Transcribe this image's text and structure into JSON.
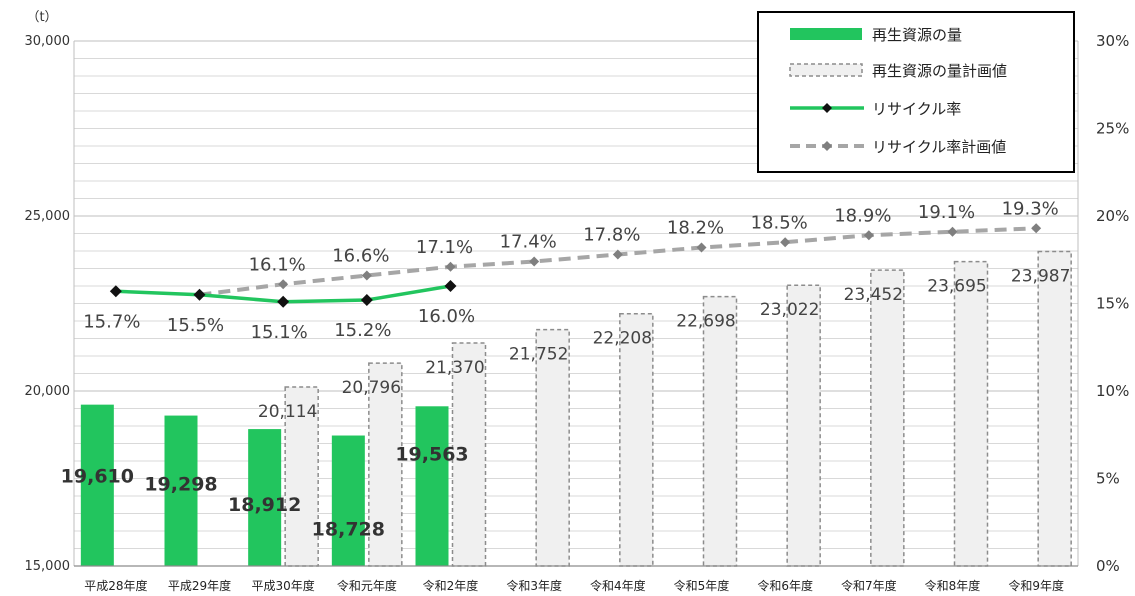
{
  "chart_data": {
    "type": "bar",
    "unit_label": "（t）",
    "categories": [
      "平成28年度",
      "平成29年度",
      "平成30年度",
      "令和元年度",
      "令和2年度",
      "令和3年度",
      "令和4年度",
      "令和5年度",
      "令和6年度",
      "令和7年度",
      "令和8年度",
      "令和9年度"
    ],
    "ylim": [
      15000,
      30000
    ],
    "y_ticks": [
      "15,000",
      "20,000",
      "25,000",
      "30,000"
    ],
    "y_tick_values": [
      15000,
      20000,
      25000,
      30000
    ],
    "y2lim": [
      0,
      30
    ],
    "y2_ticks": [
      "0%",
      "5%",
      "10%",
      "15%",
      "20%",
      "25%",
      "30%"
    ],
    "y2_tick_values": [
      0,
      5,
      10,
      15,
      20,
      25,
      30
    ],
    "grid": true,
    "legend_position": "top-right",
    "series": [
      {
        "name": "再生資源の量",
        "kind": "bar",
        "color": "#22c55e",
        "values": [
          19610,
          19298,
          18912,
          18728,
          19563,
          null,
          null,
          null,
          null,
          null,
          null,
          null
        ],
        "labels": [
          "19,610",
          "19,298",
          "18,912",
          "18,728",
          "19,563",
          "",
          "",
          "",
          "",
          "",
          "",
          ""
        ]
      },
      {
        "name": "再生資源の量計画値",
        "kind": "bar-dashed",
        "color": "#f0f0f0",
        "values": [
          null,
          null,
          20114,
          20796,
          21370,
          21752,
          22208,
          22698,
          23022,
          23452,
          23695,
          23987
        ],
        "labels": [
          "",
          "",
          "20,114",
          "20,796",
          "21,370",
          "21,752",
          "22,208",
          "22,698",
          "23,022",
          "23,452",
          "23,695",
          "23,987"
        ]
      },
      {
        "name": "リサイクル率",
        "kind": "line",
        "color": "#22c55e",
        "values": [
          15.7,
          15.5,
          15.1,
          15.2,
          16.0,
          null,
          null,
          null,
          null,
          null,
          null,
          null
        ],
        "labels": [
          "15.7%",
          "15.5%",
          "15.1%",
          "15.2%",
          "16.0%",
          "",
          "",
          "",
          "",
          "",
          "",
          ""
        ]
      },
      {
        "name": "リサイクル率計画値",
        "kind": "line-dashed",
        "color": "#a6a6a6",
        "values": [
          null,
          15.5,
          16.1,
          16.6,
          17.1,
          17.4,
          17.8,
          18.2,
          18.5,
          18.9,
          19.1,
          19.3
        ],
        "labels": [
          "",
          "",
          "16.1%",
          "16.6%",
          "17.1%",
          "17.4%",
          "17.8%",
          "18.2%",
          "18.5%",
          "18.9%",
          "19.1%",
          "19.3%"
        ]
      }
    ]
  }
}
